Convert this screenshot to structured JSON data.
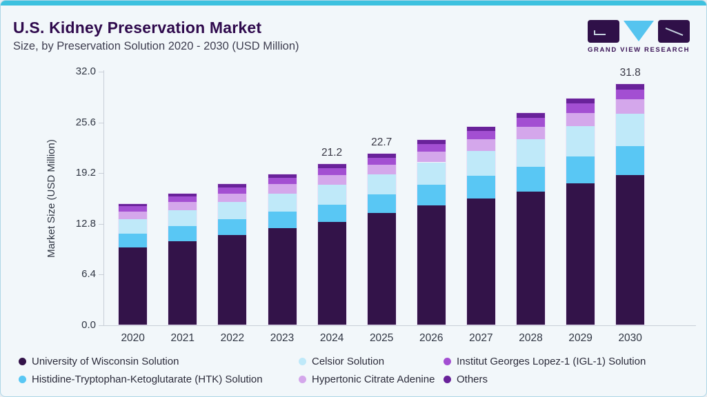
{
  "header": {
    "title": "U.S. Kidney Preservation Market",
    "subtitle": "Size, by Preservation Solution 2020 - 2030 (USD Million)"
  },
  "logo": {
    "text": "GRAND VIEW RESEARCH"
  },
  "colors": {
    "accent_cyan": "#3dc1df",
    "title_purple": "#2f0a4d",
    "logo_rect": "#2f1048",
    "logo_triangle": "#55c4ef",
    "logo_text": "#3a1356"
  },
  "chart_data": {
    "type": "bar",
    "stacked": true,
    "title": "U.S. Kidney Preservation Market Size, by Preservation Solution 2020 - 2030 (USD Million)",
    "xlabel": "",
    "ylabel": "Market Size (USD Million)",
    "ylim": [
      0,
      32
    ],
    "yticks": [
      "32.0",
      "25.6",
      "19.2",
      "12.8",
      "6.4",
      "0.0"
    ],
    "grid": false,
    "legend_position": "bottom",
    "categories": [
      "2020",
      "2021",
      "2022",
      "2023",
      "2024",
      "2025",
      "2026",
      "2027",
      "2028",
      "2029",
      "2030"
    ],
    "series": [
      {
        "key": "university-of-wisconsin-solution",
        "name": "University of Wisconsin Solution",
        "color": "#331349",
        "values": [
          10.3,
          11.1,
          11.9,
          12.8,
          13.6,
          14.8,
          15.8,
          16.7,
          17.6,
          18.7,
          19.8
        ]
      },
      {
        "key": "htk-solution",
        "name": "Histidine-Tryptophan-Ketoglutarate (HTK) Solution",
        "color": "#59c7f4",
        "values": [
          1.8,
          1.95,
          2.1,
          2.2,
          2.35,
          2.5,
          2.75,
          3.0,
          3.3,
          3.55,
          3.8
        ]
      },
      {
        "key": "celsior-solution",
        "name": "Celsior Solution",
        "color": "#bfe9f9",
        "values": [
          1.9,
          2.1,
          2.25,
          2.4,
          2.6,
          2.6,
          2.95,
          3.3,
          3.65,
          4.0,
          4.3
        ]
      },
      {
        "key": "hypertonic-citrate-adenine",
        "name": "Hypertonic Citrate Adenine",
        "color": "#d4a7eb",
        "values": [
          1.0,
          1.08,
          1.15,
          1.23,
          1.3,
          1.3,
          1.42,
          1.54,
          1.66,
          1.78,
          1.9
        ]
      },
      {
        "key": "igl-1-solution",
        "name": "Institut Georges Lopez-1 (IGL-1) Solution",
        "color": "#a34fd2",
        "values": [
          0.7,
          0.74,
          0.78,
          0.81,
          0.85,
          0.9,
          0.98,
          1.06,
          1.14,
          1.22,
          1.3
        ]
      },
      {
        "key": "others",
        "name": "Others",
        "color": "#69229a",
        "values": [
          0.3,
          0.36,
          0.42,
          0.49,
          0.55,
          0.55,
          0.58,
          0.61,
          0.64,
          0.67,
          0.7
        ]
      }
    ],
    "totals": [
      16.0,
      17.3,
      18.6,
      19.9,
      21.2,
      22.7,
      24.5,
      26.2,
      28.0,
      29.9,
      31.8
    ],
    "bar_value_labels": {
      "2024": "21.2",
      "2025": "22.7",
      "2030": "31.8"
    },
    "legend_order": [
      "University of Wisconsin Solution",
      "Histidine-Tryptophan-Ketoglutarate (HTK) Solution",
      "Celsior Solution",
      "Hypertonic Citrate Adenine",
      "Institut Georges Lopez-1 (IGL-1) Solution",
      "Others"
    ]
  }
}
